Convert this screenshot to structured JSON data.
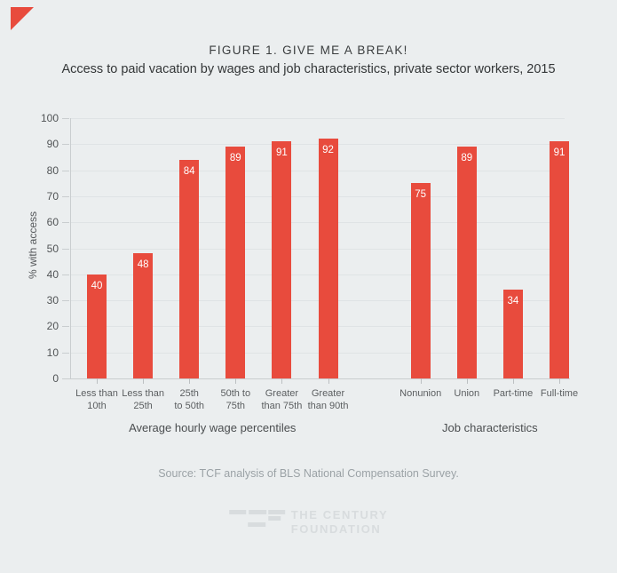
{
  "figure": {
    "source": "Source: TCF analysis of BLS National Compensation Survey.",
    "logo": {
      "line1": "THE CENTURY",
      "line2": "FOUNDATION"
    }
  },
  "colors": {
    "background": "#ebeeef",
    "accent": "#e84b3d",
    "bar": "#e84b3d",
    "gridline": "#dfe3e5",
    "axis_line": "#c9cdcf",
    "tick_line": "#bcc0c2",
    "value_label": "#ffffff",
    "logo_gray": "#d8dcde"
  },
  "chart_data": {
    "type": "bar",
    "title": "FIGURE 1. GIVE ME A BREAK!",
    "subtitle": "Access to paid vacation by wages and job characteristics, private sector workers, 2015",
    "ylabel": "% with access",
    "xlabel": "",
    "ylim": [
      0,
      100
    ],
    "ytick_step": 10,
    "grid": "horizontal",
    "legend": "none",
    "groups": [
      {
        "label": "Average hourly wage percentiles",
        "categories": [
          "Less than\n10th",
          "Less than\n25th",
          "25th\nto 50th",
          "50th to\n75th",
          "Greater\nthan 75th",
          "Greater\nthan 90th"
        ],
        "values": [
          40,
          48,
          84,
          89,
          91,
          92
        ]
      },
      {
        "label": "Job characteristics",
        "categories": [
          "Nonunion",
          "Union",
          "Part-time",
          "Full-time"
        ],
        "values": [
          75,
          89,
          34,
          91
        ]
      }
    ]
  }
}
